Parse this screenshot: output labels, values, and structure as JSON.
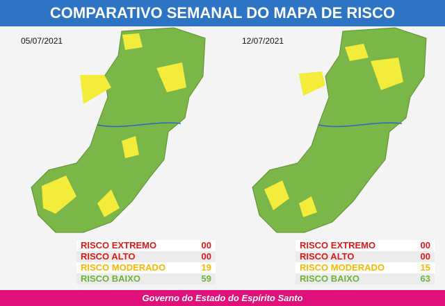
{
  "header": {
    "title": "COMPARATIVO SEMANAL DO MAPA DE RISCO"
  },
  "panels": [
    {
      "date": "05/07/2021",
      "rows": [
        {
          "label": "RISCO EXTREMO",
          "value": "00"
        },
        {
          "label": "RISCO ALTO",
          "value": "00"
        },
        {
          "label": "RISCO MODERADO",
          "value": "19"
        },
        {
          "label": "RISCO BAIXO",
          "value": "59"
        }
      ]
    },
    {
      "date": "12/07/2021",
      "rows": [
        {
          "label": "RISCO EXTREMO",
          "value": "00"
        },
        {
          "label": "RISCO ALTO",
          "value": "00"
        },
        {
          "label": "RISCO MODERADO",
          "value": "15"
        },
        {
          "label": "RISCO BAIXO",
          "value": "63"
        }
      ]
    }
  ],
  "footer": {
    "text": "Governo do Estado do Espírito Santo"
  }
}
